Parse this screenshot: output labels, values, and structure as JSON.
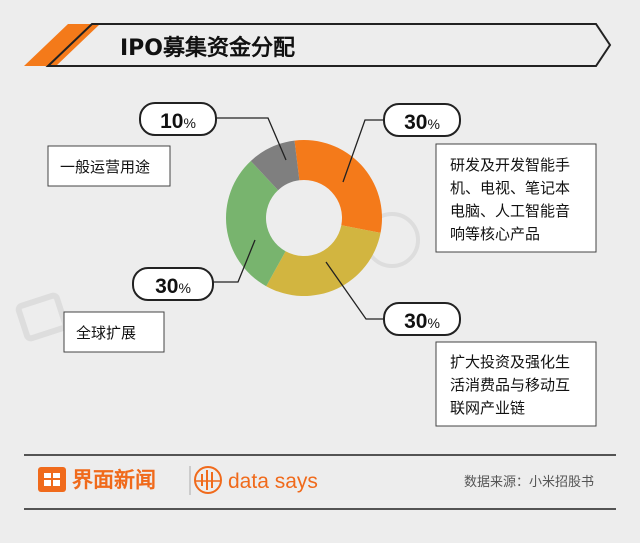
{
  "header": {
    "title": "IPO募集资金分配"
  },
  "chart_data": {
    "type": "pie",
    "title": "IPO募集资金分配",
    "labels": [
      "研发及开发智能手机、电视、笔记本电脑、人工智能音响等核心产品",
      "扩大投资及强化生活消费品与移动互联网产业链",
      "全球扩展",
      "一般运营用途"
    ],
    "values": [
      30,
      30,
      30,
      10
    ],
    "colors": [
      "#f47a1a",
      "#d2b540",
      "#78b46e",
      "#7f7f7f"
    ],
    "value_labels": [
      "30",
      "30",
      "30",
      "10"
    ],
    "percent_symbol": "%"
  },
  "callouts": {
    "general": {
      "value": "10",
      "text": [
        "一般运营用途"
      ]
    },
    "rnd": {
      "value": "30",
      "text": [
        "研发及开发智能手",
        "机、电视、笔记本",
        "电脑、人工智能音",
        "响等核心产品"
      ]
    },
    "global": {
      "value": "30",
      "text": [
        "全球扩展"
      ]
    },
    "invest": {
      "value": "30",
      "text": [
        "扩大投资及强化生",
        "活消费品与移动互",
        "联网产业链"
      ]
    }
  },
  "footer": {
    "brand": "界面新闻",
    "data_says": "data says",
    "source": "数据来源：小米招股书"
  },
  "colors": {
    "accent": "#f06a1b",
    "background": "#ededed"
  }
}
